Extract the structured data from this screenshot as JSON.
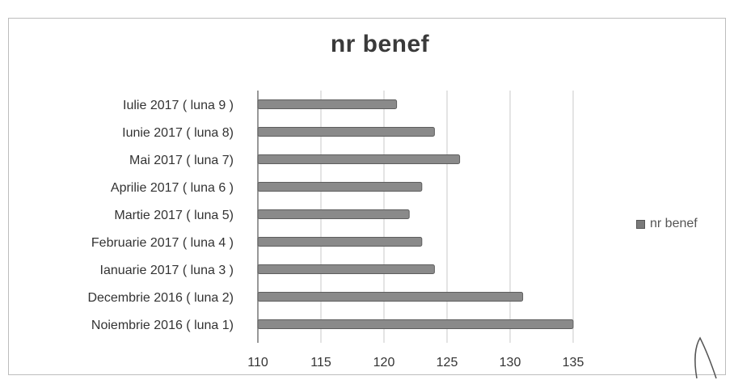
{
  "chart_data": {
    "type": "bar",
    "orientation": "horizontal",
    "title": "nr benef",
    "categories": [
      "Noiembrie 2016 ( luna 1)",
      "Decembrie 2016 ( luna 2)",
      "Ianuarie 2017 ( luna 3 )",
      "Februarie 2017 ( luna 4 )",
      "Martie 2017 ( luna 5)",
      "Aprilie 2017 ( luna 6 )",
      "Mai 2017 ( luna 7)",
      "Iunie 2017 ( luna 8)",
      "Iulie 2017 ( luna 9 )"
    ],
    "series": [
      {
        "name": "nr benef",
        "values": [
          135,
          131,
          124,
          123,
          122,
          123,
          126,
          124,
          121
        ]
      }
    ],
    "xlim": [
      110,
      135
    ],
    "xticks": [
      110,
      115,
      120,
      125,
      130,
      135
    ],
    "grid": true,
    "legend_position": "right",
    "bar_color": "#8a8a8a"
  }
}
